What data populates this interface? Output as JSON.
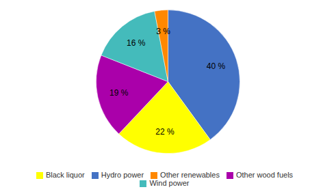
{
  "chart_data": {
    "type": "pie",
    "categories": [
      "Hydro power",
      "Black liquor",
      "Other wood fuels",
      "Wind power",
      "Other renewables"
    ],
    "values": [
      40,
      22,
      19,
      16,
      3
    ],
    "value_labels": [
      "40 %",
      "22 %",
      "19 %",
      "16 %",
      "3 %"
    ],
    "colors": [
      "#4472C4",
      "#FFFF00",
      "#AA00AA",
      "#44BBBB",
      "#FF8800"
    ],
    "data_labels": true,
    "legend": "bottom"
  }
}
